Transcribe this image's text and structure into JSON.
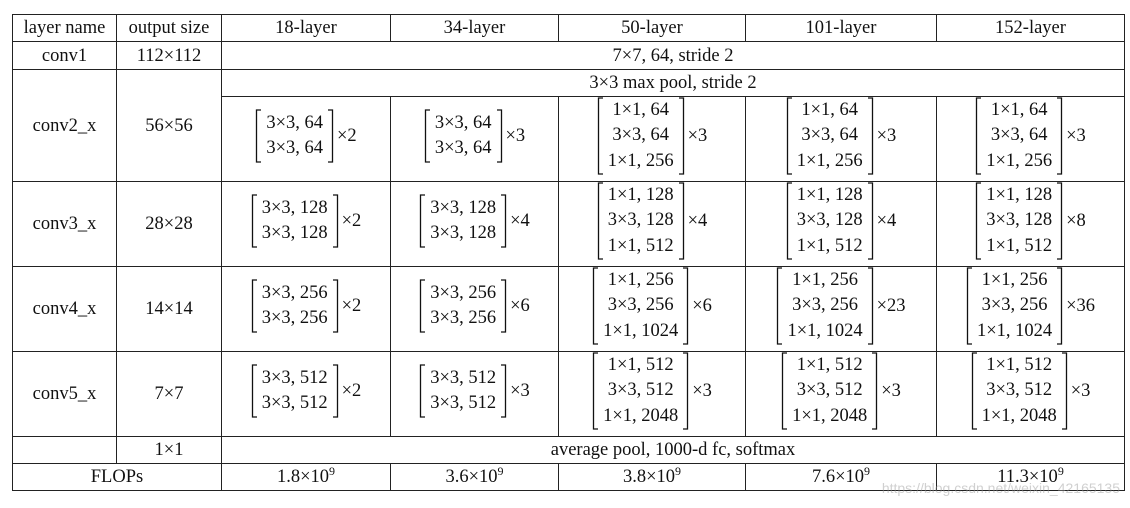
{
  "table": {
    "headers": [
      "layer name",
      "output size",
      "18-layer",
      "34-layer",
      "50-layer",
      "101-layer",
      "152-layer"
    ],
    "conv1": {
      "name": "conv1",
      "output": "112×112",
      "spec": "7×7, 64, stride 2"
    },
    "pool": {
      "spec": "3×3 max pool, stride 2"
    },
    "stages": [
      {
        "name": "conv2_x",
        "output": "56×56",
        "cells": [
          {
            "lines": [
              "3×3, 64",
              "3×3, 64"
            ],
            "mult": "×2"
          },
          {
            "lines": [
              "3×3, 64",
              "3×3, 64"
            ],
            "mult": "×3"
          },
          {
            "lines": [
              "1×1, 64",
              "3×3, 64",
              "1×1, 256"
            ],
            "mult": "×3"
          },
          {
            "lines": [
              "1×1, 64",
              "3×3, 64",
              "1×1, 256"
            ],
            "mult": "×3"
          },
          {
            "lines": [
              "1×1, 64",
              "3×3, 64",
              "1×1, 256"
            ],
            "mult": "×3"
          }
        ]
      },
      {
        "name": "conv3_x",
        "output": "28×28",
        "cells": [
          {
            "lines": [
              "3×3, 128",
              "3×3, 128"
            ],
            "mult": "×2"
          },
          {
            "lines": [
              "3×3, 128",
              "3×3, 128"
            ],
            "mult": "×4"
          },
          {
            "lines": [
              "1×1, 128",
              "3×3, 128",
              "1×1, 512"
            ],
            "mult": "×4"
          },
          {
            "lines": [
              "1×1, 128",
              "3×3, 128",
              "1×1, 512"
            ],
            "mult": "×4"
          },
          {
            "lines": [
              "1×1, 128",
              "3×3, 128",
              "1×1, 512"
            ],
            "mult": "×8"
          }
        ]
      },
      {
        "name": "conv4_x",
        "output": "14×14",
        "cells": [
          {
            "lines": [
              "3×3, 256",
              "3×3, 256"
            ],
            "mult": "×2"
          },
          {
            "lines": [
              "3×3, 256",
              "3×3, 256"
            ],
            "mult": "×6"
          },
          {
            "lines": [
              "1×1, 256",
              "3×3, 256",
              "1×1, 1024"
            ],
            "mult": "×6"
          },
          {
            "lines": [
              "1×1, 256",
              "3×3, 256",
              "1×1, 1024"
            ],
            "mult": "×23"
          },
          {
            "lines": [
              "1×1, 256",
              "3×3, 256",
              "1×1, 1024"
            ],
            "mult": "×36"
          }
        ]
      },
      {
        "name": "conv5_x",
        "output": "7×7",
        "cells": [
          {
            "lines": [
              "3×3, 512",
              "3×3, 512"
            ],
            "mult": "×2"
          },
          {
            "lines": [
              "3×3, 512",
              "3×3, 512"
            ],
            "mult": "×3"
          },
          {
            "lines": [
              "1×1, 512",
              "3×3, 512",
              "1×1, 2048"
            ],
            "mult": "×3"
          },
          {
            "lines": [
              "1×1, 512",
              "3×3, 512",
              "1×1, 2048"
            ],
            "mult": "×3"
          },
          {
            "lines": [
              "1×1, 512",
              "3×3, 512",
              "1×1, 2048"
            ],
            "mult": "×3"
          }
        ]
      }
    ],
    "final": {
      "output": "1×1",
      "spec": "average pool, 1000-d fc, softmax"
    },
    "flops": {
      "label": "FLOPs",
      "values": [
        {
          "mantissa": "1.8×10",
          "exp": "9"
        },
        {
          "mantissa": "3.6×10",
          "exp": "9"
        },
        {
          "mantissa": "3.8×10",
          "exp": "9"
        },
        {
          "mantissa": "7.6×10",
          "exp": "9"
        },
        {
          "mantissa": "11.3×10",
          "exp": "9"
        }
      ]
    }
  },
  "watermark": "https://blog.csdn.net/weixin_42165135"
}
